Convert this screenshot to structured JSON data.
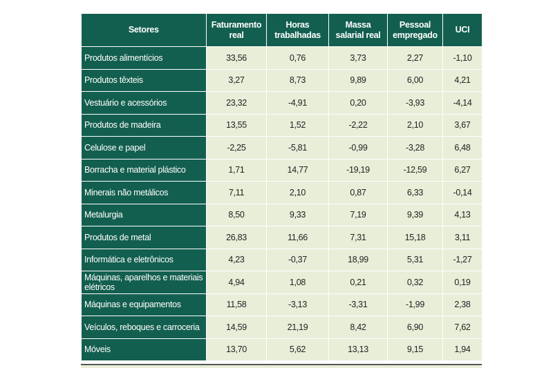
{
  "table": {
    "header": [
      "Setores",
      "Faturamento real",
      "Horas trabalhadas",
      "Massa salarial real",
      "Pessoal empregado",
      "UCI"
    ],
    "rows": [
      [
        "Produtos alimentícios",
        "33,56",
        "0,76",
        "3,73",
        "2,27",
        "-1,10"
      ],
      [
        "Produtos têxteis",
        "3,27",
        "8,73",
        "9,89",
        "6,00",
        "4,21"
      ],
      [
        "Vestuário e acessórios",
        "23,32",
        "-4,91",
        "0,20",
        "-3,93",
        "-4,14"
      ],
      [
        "Produtos de madeira",
        "13,55",
        "1,52",
        "-2,22",
        "2,10",
        "3,67"
      ],
      [
        "Celulose e papel",
        "-2,25",
        "-5,81",
        "-0,99",
        "-3,28",
        "6,48"
      ],
      [
        "Borracha e material plástico",
        "1,71",
        "14,77",
        "-19,19",
        "-12,59",
        "6,27"
      ],
      [
        "Minerais não metálicos",
        "7,11",
        "2,10",
        "0,87",
        "6,33",
        "-0,14"
      ],
      [
        "Metalurgia",
        "8,50",
        "9,33",
        "7,19",
        "9,39",
        "4,13"
      ],
      [
        "Produtos de metal",
        "26,83",
        "11,66",
        "7,31",
        "15,18",
        "3,11"
      ],
      [
        "Informática e eletrônicos",
        "4,23",
        "-0,37",
        "18,99",
        "5,31",
        "-1,27"
      ],
      [
        "Máquinas, aparelhos e materiais elétricos",
        "4,94",
        "1,08",
        "0,21",
        "0,32",
        "0,19"
      ],
      [
        "Máquinas e equipamentos",
        "11,58",
        "-3,13",
        "-3,31",
        "-1,99",
        "2,38"
      ],
      [
        "Veículos, reboques e carroceria",
        "14,59",
        "21,19",
        "8,42",
        "6,90",
        "7,62"
      ],
      [
        "Móveis",
        "13,70",
        "5,62",
        "13,13",
        "9,15",
        "1,94"
      ]
    ]
  }
}
